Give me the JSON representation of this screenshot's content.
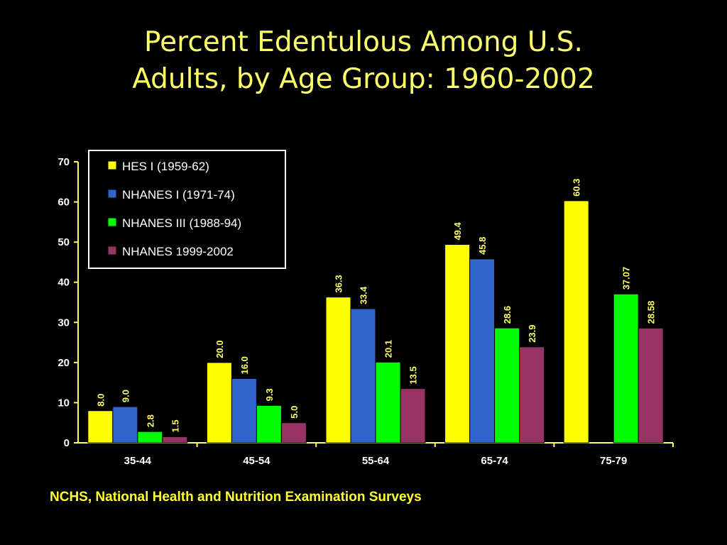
{
  "slide": {
    "title_line1": "Percent Edentulous Among U.S.",
    "title_line2": "Adults, by Age Group: 1960-2002",
    "source": "NCHS, National Health and Nutrition Examination Surveys"
  },
  "colors": {
    "background": "#000000",
    "title": "#FFFF66",
    "axis": "#FFFF66",
    "hes": "#FFFF00",
    "nhanes1": "#3366CC",
    "nhanes3": "#00FF00",
    "nhanes9902": "#993366"
  },
  "chart_data": {
    "type": "bar",
    "title": "",
    "xlabel": "",
    "ylabel": "",
    "ylim": [
      0,
      70
    ],
    "yticks": [
      "0",
      "10",
      "20",
      "30",
      "40",
      "50",
      "60",
      "70"
    ],
    "categories": [
      "35-44",
      "45-54",
      "55-64",
      "65-74",
      "75-79"
    ],
    "legend_position": "top-left",
    "grid": false,
    "series": [
      {
        "name": "HES I (1959-62)",
        "color": "#FFFF00",
        "values": [
          8.0,
          20.0,
          36.3,
          49.4,
          60.3
        ],
        "labels": [
          "8.0",
          "20.0",
          "36.3",
          "49.4",
          "60.3"
        ]
      },
      {
        "name": "NHANES I (1971-74)",
        "color": "#3366CC",
        "values": [
          9.0,
          16.0,
          33.4,
          45.8,
          null
        ],
        "labels": [
          "9.0",
          "16.0",
          "33.4",
          "45.8",
          ""
        ]
      },
      {
        "name": "NHANES III (1988-94)",
        "color": "#00FF00",
        "values": [
          2.8,
          9.3,
          20.1,
          28.6,
          37.07
        ],
        "labels": [
          "2.8",
          "9.3",
          "20.1",
          "28.6",
          "37.07"
        ]
      },
      {
        "name": "NHANES 1999-2002",
        "color": "#993366",
        "values": [
          1.5,
          5.0,
          13.5,
          23.9,
          28.58
        ],
        "labels": [
          "1.5",
          "5.0",
          "13.5",
          "23.9",
          "28.58"
        ]
      }
    ]
  }
}
